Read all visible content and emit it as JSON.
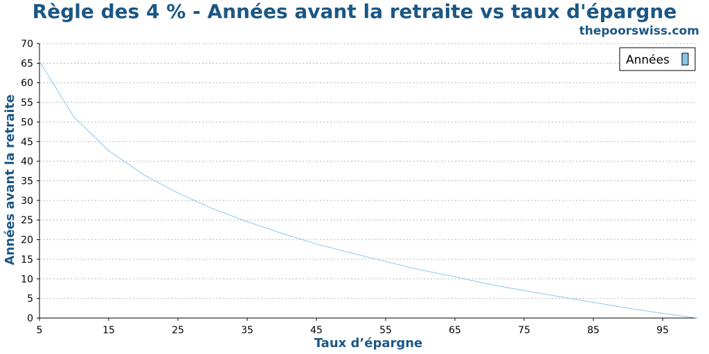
{
  "chart_data": {
    "type": "line",
    "title": "Règle des 4 % - Années avant la retraite vs taux d'épargne",
    "source": "thepoorswiss.com",
    "xlabel": "Taux d’épargne",
    "ylabel": "Années avant la retraite",
    "xlim": [
      5,
      100
    ],
    "ylim": [
      0,
      70
    ],
    "x_ticks": [
      5,
      15,
      25,
      35,
      45,
      55,
      65,
      75,
      85,
      95
    ],
    "y_ticks": [
      0,
      5,
      10,
      15,
      20,
      25,
      30,
      35,
      40,
      45,
      50,
      55,
      60,
      65,
      70
    ],
    "grid": "horizontal dotted",
    "legend_position": "top-right",
    "series": [
      {
        "name": "Années",
        "color": "#88c8e8",
        "x": [
          5,
          10,
          15,
          20,
          25,
          30,
          35,
          40,
          45,
          50,
          55,
          60,
          65,
          70,
          75,
          80,
          85,
          90,
          95,
          100
        ],
        "y": [
          65.5,
          51.2,
          42.7,
          36.6,
          31.9,
          27.9,
          24.6,
          21.6,
          18.9,
          16.6,
          14.4,
          12.3,
          10.5,
          8.6,
          7.0,
          5.5,
          4.0,
          2.5,
          1.2,
          0
        ]
      }
    ]
  }
}
